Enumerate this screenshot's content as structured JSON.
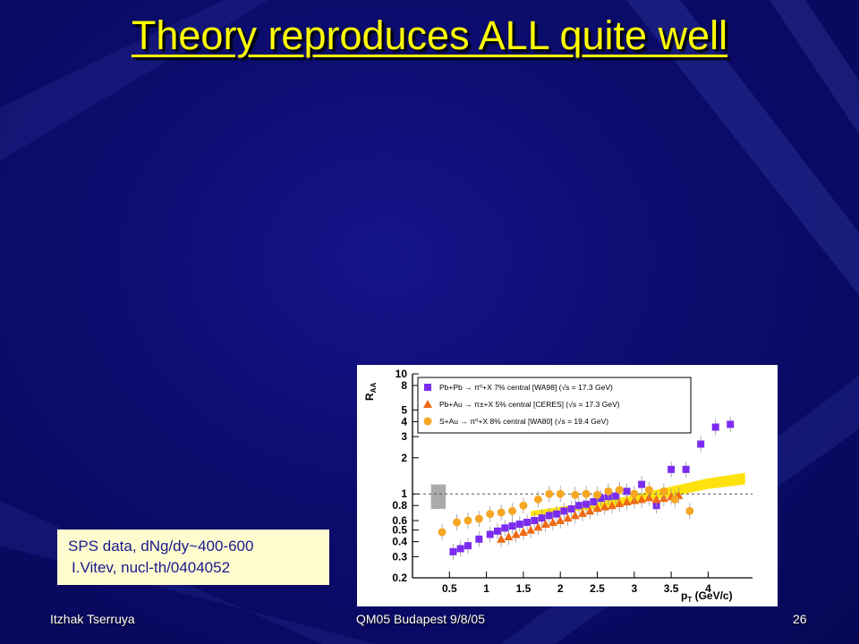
{
  "slide": {
    "title": "Theory reproduces ALL quite well",
    "note_line1": "SPS data, dNg/dy~400-600",
    "note_line2": "I.Vitev, nucl-th/0404052",
    "footer_left": "Itzhak Tserruya",
    "footer_center": "QM05 Budapest 9/8/05",
    "footer_right": "26",
    "title_color": "#ffff00"
  },
  "chart_data": {
    "type": "scatter",
    "ylabel_main": "R",
    "ylabel_sub": "AA",
    "xlabel_main": "p",
    "xlabel_sub": "T",
    "xlabel_unit": "(GeV/c)",
    "y_log": true,
    "xlim": [
      0,
      4.6
    ],
    "ylim": [
      0.2,
      10
    ],
    "x_ticks": [
      "0.5",
      "1",
      "1.5",
      "2",
      "2.5",
      "3",
      "3.5",
      "4"
    ],
    "y_ticks": [
      "0.2",
      "0.3",
      "0.4",
      "0.5",
      "0.6",
      "0.8",
      "1",
      "2",
      "3",
      "4",
      "5",
      "8",
      "10"
    ],
    "reference_line": 1,
    "legend_position": "top",
    "legend": [
      {
        "color": "#7b2cf0",
        "marker": "square",
        "label": "Pb+Pb → π⁰+X  7%  central [WA98]  (√s = 17.3 GeV)"
      },
      {
        "color": "#f06a14",
        "marker": "triangle",
        "label": "Pb+Au → π±+X  5% central [CERES]  (√s = 17.3 GeV)"
      },
      {
        "color": "#f5a623",
        "marker": "circle",
        "label": "S+Au → π⁰+X 8%  central [WA80]  (√s = 19.4 GeV)"
      }
    ],
    "series": [
      {
        "marker": "square",
        "color": "#7b2cf0",
        "x": [
          0.55,
          0.65,
          0.75,
          0.9,
          1.05,
          1.15,
          1.25,
          1.35,
          1.45,
          1.55,
          1.65,
          1.75,
          1.85,
          1.95,
          2.05,
          2.15,
          2.25,
          2.35,
          2.45,
          2.55,
          2.65,
          2.75,
          2.9,
          3.1,
          3.3,
          3.5,
          3.7,
          3.9,
          4.1,
          4.3
        ],
        "y": [
          0.33,
          0.35,
          0.37,
          0.42,
          0.46,
          0.49,
          0.52,
          0.54,
          0.56,
          0.58,
          0.6,
          0.63,
          0.66,
          0.68,
          0.72,
          0.75,
          0.8,
          0.82,
          0.86,
          0.92,
          0.95,
          0.96,
          1.05,
          1.2,
          0.8,
          1.6,
          1.6,
          2.6,
          3.6,
          3.8
        ]
      },
      {
        "marker": "triangle",
        "color": "#f06a14",
        "x": [
          1.2,
          1.3,
          1.4,
          1.5,
          1.6,
          1.7,
          1.8,
          1.9,
          2.0,
          2.1,
          2.2,
          2.3,
          2.4,
          2.5,
          2.6,
          2.7,
          2.8,
          2.9,
          3.0,
          3.1,
          3.2,
          3.3,
          3.4,
          3.5,
          3.6
        ],
        "y": [
          0.42,
          0.44,
          0.46,
          0.48,
          0.5,
          0.53,
          0.56,
          0.58,
          0.6,
          0.63,
          0.66,
          0.69,
          0.72,
          0.76,
          0.78,
          0.8,
          0.83,
          0.86,
          0.88,
          0.9,
          0.93,
          0.9,
          0.92,
          0.95,
          0.97
        ]
      },
      {
        "marker": "circle",
        "color": "#f5a623",
        "x": [
          0.4,
          0.6,
          0.75,
          0.9,
          1.05,
          1.2,
          1.35,
          1.5,
          1.7,
          1.85,
          2.0,
          2.2,
          2.35,
          2.5,
          2.65,
          2.8,
          3.0,
          3.2,
          3.4,
          3.55,
          3.75
        ],
        "y": [
          0.48,
          0.58,
          0.6,
          0.62,
          0.68,
          0.7,
          0.72,
          0.8,
          0.9,
          1.0,
          1.0,
          0.98,
          1.0,
          0.98,
          1.05,
          1.08,
          1.0,
          1.08,
          1.05,
          0.9,
          0.72
        ]
      }
    ],
    "theory_band": {
      "color": "#ffe000",
      "x": [
        1.6,
        2.0,
        2.5,
        3.0,
        3.5,
        4.0,
        4.5
      ],
      "low": [
        0.65,
        0.7,
        0.75,
        0.85,
        0.95,
        1.1,
        1.2
      ],
      "high": [
        0.72,
        0.78,
        0.85,
        0.98,
        1.15,
        1.35,
        1.5
      ]
    },
    "systematic_box": {
      "x": [
        0.25,
        0.45
      ],
      "y": [
        0.75,
        1.2
      ],
      "color": "#aaaaaa"
    }
  }
}
